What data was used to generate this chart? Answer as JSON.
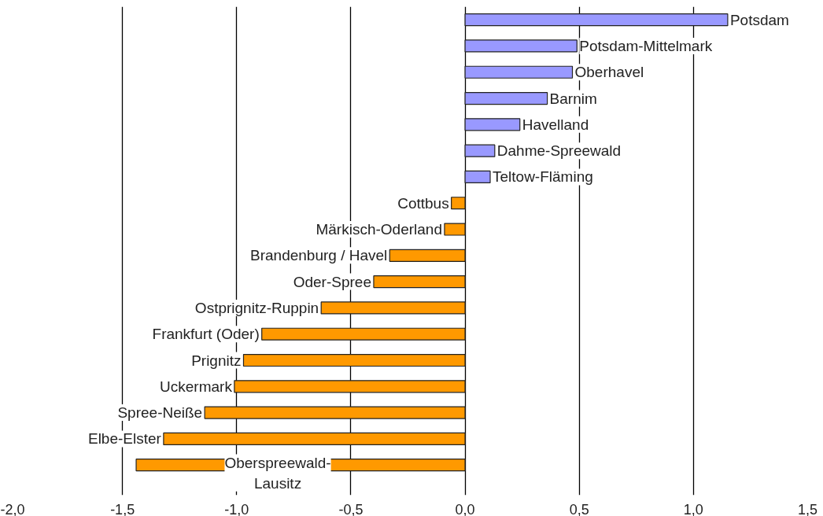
{
  "chart_data": {
    "type": "bar",
    "orientation": "horizontal",
    "categories": [
      "Potsdam",
      "Potsdam-Mittelmark",
      "Oberhavel",
      "Barnim",
      "Havelland",
      "Dahme-Spreewald",
      "Teltow-Fläming",
      "Cottbus",
      "Märkisch-Oderland",
      "Brandenburg / Havel",
      "Oder-Spree",
      "Ostprignitz-Ruppin",
      "Frankfurt (Oder)",
      "Prignitz",
      "Uckermark",
      "Spree-Neiße",
      "Elbe-Elster",
      "Oberspreewald-Lausitz"
    ],
    "values": [
      1.15,
      0.49,
      0.47,
      0.36,
      0.24,
      0.13,
      0.11,
      -0.06,
      -0.09,
      -0.33,
      -0.4,
      -0.63,
      -0.89,
      -0.97,
      -1.01,
      -1.14,
      -1.32,
      -1.44
    ],
    "colors": [
      "#9999ff",
      "#9999ff",
      "#9999ff",
      "#9999ff",
      "#9999ff",
      "#9999ff",
      "#9999ff",
      "#ff9900",
      "#ff9900",
      "#ff9900",
      "#ff9900",
      "#ff9900",
      "#ff9900",
      "#ff9900",
      "#ff9900",
      "#ff9900",
      "#ff9900",
      "#ff9900"
    ],
    "xlim": [
      -2,
      1.5
    ],
    "xticks": [
      {
        "value": -2,
        "label": "-2,0"
      },
      {
        "value": -1.5,
        "label": "-1,5"
      },
      {
        "value": -1,
        "label": "-1,0"
      },
      {
        "value": -0.5,
        "label": "-0,5"
      },
      {
        "value": 0,
        "label": "0,0"
      },
      {
        "value": 0.5,
        "label": "0,5"
      },
      {
        "value": 1,
        "label": "1,0"
      },
      {
        "value": 1.5,
        "label": "1,5"
      }
    ],
    "grid": "x"
  }
}
